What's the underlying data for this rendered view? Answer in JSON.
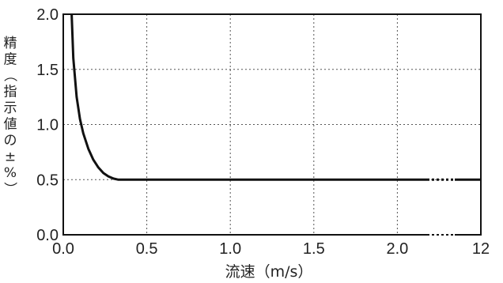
{
  "chart_data": {
    "type": "line",
    "xlabel": "流速（m/s）",
    "ylabel": "精度（指示値の±%）",
    "x_ticks": [
      "0.0",
      "0.5",
      "1.0",
      "1.5",
      "2.0",
      "12"
    ],
    "y_ticks": [
      "0.0",
      "0.5",
      "1.0",
      "1.5",
      "2.0"
    ],
    "xlim": [
      0,
      2.5
    ],
    "ylim": [
      0,
      2.0
    ],
    "x_axis_break": "between 2.0 and 12 (dotted segment)",
    "grid": true,
    "series": [
      {
        "x": [
          0.05,
          0.06,
          0.08,
          0.1,
          0.12,
          0.15,
          0.18,
          0.21,
          0.24,
          0.27,
          0.3,
          0.33,
          0.35,
          0.5,
          1.0,
          1.5,
          2.0,
          12
        ],
        "y": [
          2.0,
          1.6,
          1.25,
          1.05,
          0.92,
          0.78,
          0.68,
          0.61,
          0.56,
          0.53,
          0.51,
          0.5,
          0.5,
          0.5,
          0.5,
          0.5,
          0.5,
          0.5
        ]
      }
    ]
  }
}
